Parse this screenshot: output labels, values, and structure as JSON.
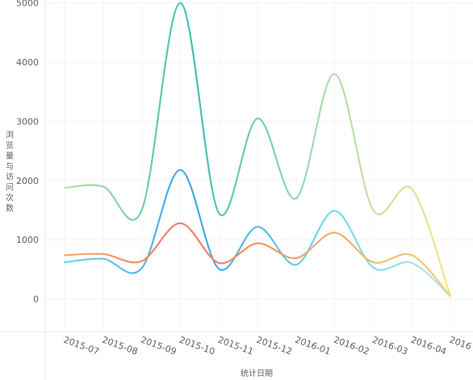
{
  "chart_data": {
    "type": "line",
    "smooth": true,
    "categories": [
      "2015-07",
      "2015-08",
      "2015-09",
      "2015-10",
      "2015-11",
      "2015-12",
      "2016-01",
      "2016-02",
      "2016-03",
      "2016-04",
      "2016"
    ],
    "ylim": [
      -550,
      5050
    ],
    "yticks": [
      0,
      1000,
      2000,
      3000,
      4000,
      5000
    ],
    "xlabel": "统计日期",
    "ylabel": "浏览量与访问次数",
    "grid": true,
    "series": [
      {
        "values": [
          1880,
          1900,
          1500,
          5000,
          1450,
          3050,
          1700,
          3800,
          1500,
          1860,
          50
        ],
        "color_stops": [
          "#b9e2ad",
          "#3ec2b2",
          "#a9dcb0",
          "#f4e784"
        ]
      },
      {
        "values": [
          620,
          680,
          520,
          2180,
          510,
          1220,
          580,
          1490,
          530,
          610,
          50
        ],
        "color_stops": [
          "#6fd6ef",
          "#3ea8ea",
          "#6fd6ef",
          "#b8e6d9"
        ]
      },
      {
        "values": [
          740,
          760,
          640,
          1280,
          610,
          940,
          690,
          1120,
          620,
          740,
          50
        ],
        "color_stops": [
          "#f5a96e",
          "#ef7c6a",
          "#f5a96e",
          "#f2d077"
        ]
      }
    ]
  }
}
